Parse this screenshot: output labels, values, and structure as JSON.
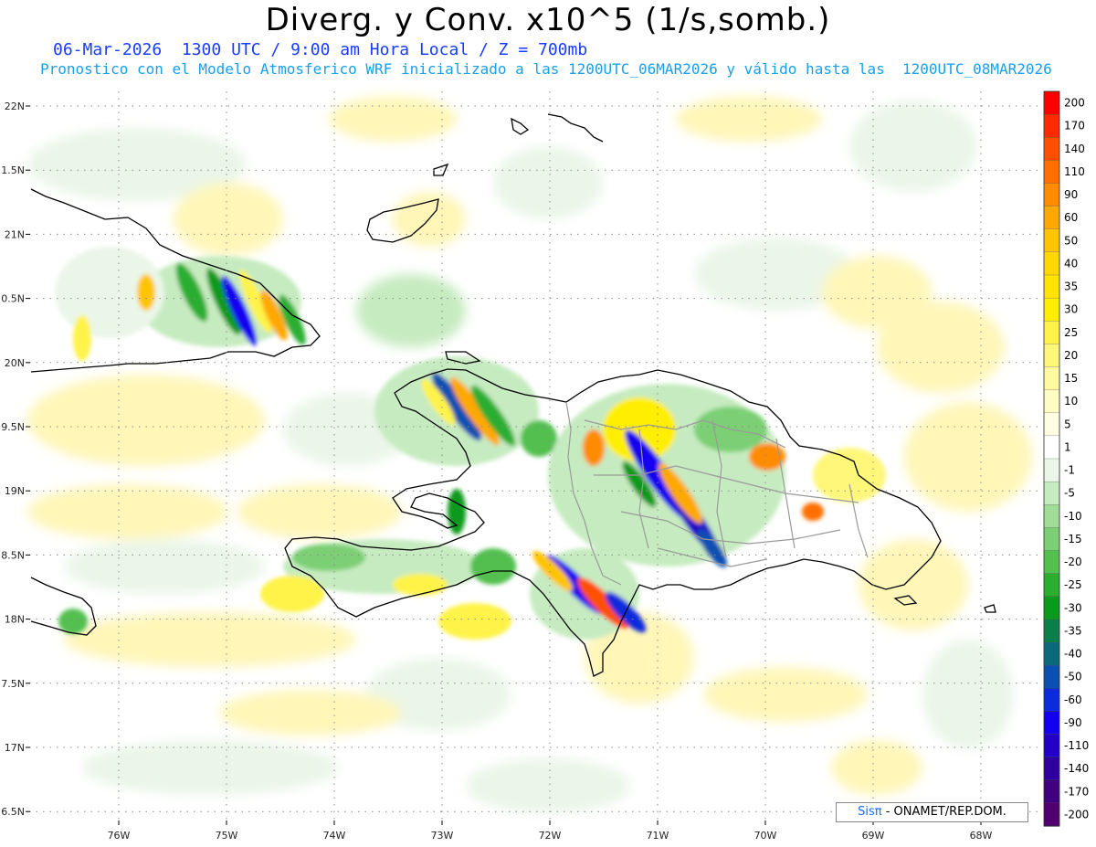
{
  "title": "Diverg. y Conv. x10^5 (1/s,somb.)",
  "subtitle_line1": "06-Mar-2026  1300 UTC / 9:00 am Hora Local / Z = 700mb",
  "subtitle_line2": "Pronostico con el Modelo Atmosferico WRF inicializado a las 1200UTC_06MAR2026 y válido hasta las  1200UTC_08MAR2026",
  "credit": {
    "brand": "Sisπ",
    "text": " - ONAMET/REP.DOM."
  },
  "axes": {
    "lon_labels": [
      "76W",
      "75W",
      "74W",
      "73W",
      "72W",
      "71W",
      "70W",
      "69W",
      "68W"
    ],
    "lat_labels": [
      "22N",
      "1.5N",
      "21N",
      "0.5N",
      "20N",
      "9.5N",
      "19N",
      "8.5N",
      "18N",
      "7.5N",
      "17N",
      "6.5N"
    ]
  },
  "colorbar": {
    "labels": [
      "200",
      "170",
      "140",
      "110",
      "90",
      "60",
      "50",
      "40",
      "35",
      "30",
      "25",
      "20",
      "15",
      "10",
      "5",
      "1",
      "-1",
      "-5",
      "-10",
      "-15",
      "-20",
      "-25",
      "-30",
      "-35",
      "-40",
      "-50",
      "-60",
      "-90",
      "-110",
      "-140",
      "-170",
      "-200"
    ],
    "colors": [
      "#ff0000",
      "#ff2a00",
      "#ff5000",
      "#ff7000",
      "#ff8c00",
      "#ffa800",
      "#ffc400",
      "#ffd800",
      "#ffe400",
      "#ffee00",
      "#fff34a",
      "#fff77a",
      "#fffaa0",
      "#fffcc4",
      "#fffee2",
      "#ffffff",
      "#eaf6e8",
      "#c6ebc0",
      "#a2dd98",
      "#7ccf74",
      "#52bf4f",
      "#2aae30",
      "#0a9a1e",
      "#0a7f4a",
      "#0a6a7a",
      "#0a4fb2",
      "#0a2cdc",
      "#1400f0",
      "#2200c8",
      "#30009e",
      "#400080",
      "#500070"
    ]
  },
  "map": {
    "region": "Hispaniola, eastern Cuba, Turks and Caicos, Jamaica (east tip), Puerto Rico (west tip)",
    "projection_grid": "dotted lat/lon lines every 1 degree"
  }
}
